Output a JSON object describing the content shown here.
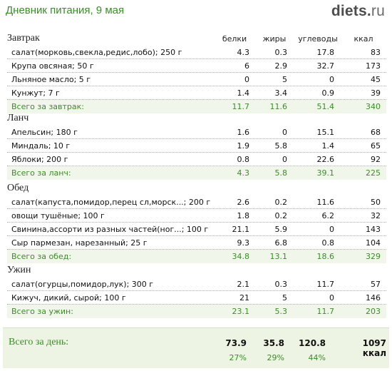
{
  "header": {
    "title": "Дневник питания, 9 мая",
    "logo_main": "diets",
    "logo_dot": ".",
    "logo_tld": "ru"
  },
  "columns": [
    "белки",
    "жиры",
    "углеводы",
    "ккал"
  ],
  "sections": [
    {
      "title": "Завтрак",
      "rows": [
        {
          "name": "салат(морковь,свекла,редис,лобо); 250 г",
          "p": "4.3",
          "f": "0.3",
          "c": "17.8",
          "k": "83"
        },
        {
          "name": "Крупа овсяная; 50 г",
          "p": "6",
          "f": "2.9",
          "c": "32.7",
          "k": "173"
        },
        {
          "name": "Льняное масло; 5 г",
          "p": "0",
          "f": "5",
          "c": "0",
          "k": "45"
        },
        {
          "name": "Кунжут; 7 г",
          "p": "1.4",
          "f": "3.4",
          "c": "0.9",
          "k": "39"
        }
      ],
      "total": {
        "name": "Всего за завтрак:",
        "p": "11.7",
        "f": "11.6",
        "c": "51.4",
        "k": "340"
      }
    },
    {
      "title": "Ланч",
      "rows": [
        {
          "name": "Апельсин; 180 г",
          "p": "1.6",
          "f": "0",
          "c": "15.1",
          "k": "68"
        },
        {
          "name": "Миндаль; 10 г",
          "p": "1.9",
          "f": "5.8",
          "c": "1.4",
          "k": "65"
        },
        {
          "name": "Яблоки; 200 г",
          "p": "0.8",
          "f": "0",
          "c": "22.6",
          "k": "92"
        }
      ],
      "total": {
        "name": "Всего за ланч:",
        "p": "4.3",
        "f": "5.8",
        "c": "39.1",
        "k": "225"
      }
    },
    {
      "title": "Обед",
      "rows": [
        {
          "name": "салат(капуста,помидор,перец сл,морск...; 200 г",
          "p": "2.6",
          "f": "0.2",
          "c": "11.6",
          "k": "50"
        },
        {
          "name": "овощи тушёные; 100 г",
          "p": "1.8",
          "f": "0.2",
          "c": "6.2",
          "k": "32"
        },
        {
          "name": "Свинина,ассорти из разных частей(ног...; 100 г",
          "p": "21.1",
          "f": "5.9",
          "c": "0",
          "k": "143"
        },
        {
          "name": "Сыр пармезан, нарезанный; 25 г",
          "p": "9.3",
          "f": "6.8",
          "c": "0.8",
          "k": "104"
        }
      ],
      "total": {
        "name": "Всего за обед:",
        "p": "34.8",
        "f": "13.1",
        "c": "18.6",
        "k": "329"
      }
    },
    {
      "title": "Ужин",
      "rows": [
        {
          "name": "салат(огурцы,помидор,лук); 300 г",
          "p": "2.1",
          "f": "0.3",
          "c": "11.7",
          "k": "57"
        },
        {
          "name": "Кижуч, дикий, сырой; 100 г",
          "p": "21",
          "f": "5",
          "c": "0",
          "k": "146"
        }
      ],
      "total": {
        "name": "Всего за ужин:",
        "p": "23.1",
        "f": "5.3",
        "c": "11.7",
        "k": "203"
      }
    }
  ],
  "day_total": {
    "label": "Всего за день:",
    "p": "73.9",
    "f": "35.8",
    "c": "120.8",
    "k": "1097 ккал",
    "p_pct": "27%",
    "f_pct": "29%",
    "c_pct": "44%"
  },
  "colors": {
    "accent": "#3c8c2a",
    "total_bg": "#f1f6ea",
    "day_bg": "#eef4e3"
  }
}
